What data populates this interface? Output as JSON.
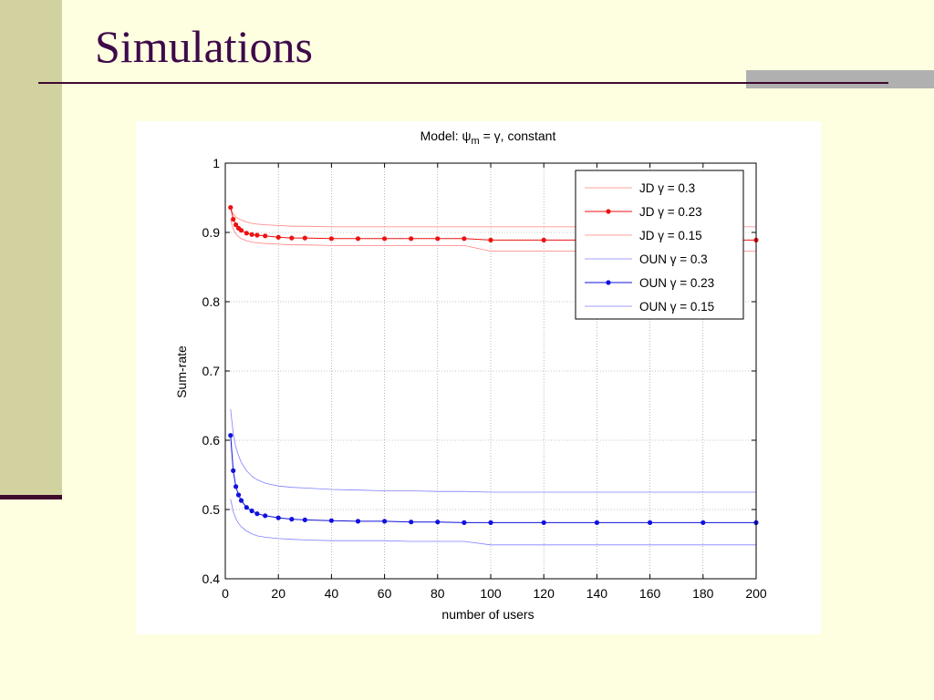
{
  "slide": {
    "title": "Simulations"
  },
  "chart_data": {
    "type": "line",
    "title": "Model: ψm = γ, constant",
    "title_parts": {
      "prefix": "Model: ",
      "psi": "ψ",
      "subscript": "m",
      "rest": " = γ, constant"
    },
    "xlabel": "number of users",
    "ylabel": "Sum-rate",
    "xlim": [
      0,
      200
    ],
    "ylim": [
      0.4,
      1
    ],
    "xticks": [
      0,
      20,
      40,
      60,
      80,
      100,
      120,
      140,
      160,
      180,
      200
    ],
    "xtick_labels": [
      "0",
      "20",
      "40",
      "60",
      "80",
      "100",
      "120",
      "140",
      "160",
      "180",
      "200"
    ],
    "yticks": [
      0.4,
      0.5,
      0.6,
      0.7,
      0.8,
      0.9,
      1
    ],
    "ytick_labels": [
      "0.4",
      "0.5",
      "0.6",
      "0.7",
      "0.8",
      "0.9",
      "1"
    ],
    "grid": true,
    "legend_position": "top-right",
    "x": [
      2,
      3,
      4,
      5,
      6,
      8,
      10,
      12,
      15,
      20,
      25,
      30,
      40,
      50,
      60,
      70,
      80,
      90,
      100,
      120,
      140,
      160,
      180,
      200
    ],
    "series": [
      {
        "name": "JD γ = 0.3",
        "color": "#ff8080",
        "style": "thin",
        "values": [
          0.935,
          0.927,
          0.922,
          0.92,
          0.918,
          0.915,
          0.913,
          0.912,
          0.911,
          0.91,
          0.909,
          0.909,
          0.908,
          0.908,
          0.908,
          0.908,
          0.908,
          0.908,
          0.908,
          0.908,
          0.908,
          0.908,
          0.908,
          0.908
        ]
      },
      {
        "name": "JD γ = 0.23",
        "color": "#ee1111",
        "style": "dots",
        "values": [
          0.936,
          0.919,
          0.911,
          0.906,
          0.903,
          0.899,
          0.897,
          0.896,
          0.895,
          0.893,
          0.892,
          0.892,
          0.891,
          0.891,
          0.891,
          0.891,
          0.891,
          0.891,
          0.889,
          0.889,
          0.889,
          0.889,
          0.889,
          0.889
        ]
      },
      {
        "name": "JD γ = 0.15",
        "color": "#ff8080",
        "style": "thin",
        "values": [
          0.918,
          0.905,
          0.898,
          0.894,
          0.891,
          0.888,
          0.886,
          0.885,
          0.884,
          0.883,
          0.882,
          0.882,
          0.881,
          0.881,
          0.881,
          0.881,
          0.881,
          0.881,
          0.873,
          0.873,
          0.873,
          0.873,
          0.873,
          0.873
        ]
      },
      {
        "name": "OUN γ = 0.3",
        "color": "#8080ff",
        "style": "thin",
        "values": [
          0.645,
          0.61,
          0.59,
          0.578,
          0.568,
          0.556,
          0.548,
          0.543,
          0.538,
          0.534,
          0.532,
          0.531,
          0.529,
          0.528,
          0.527,
          0.527,
          0.526,
          0.526,
          0.525,
          0.525,
          0.525,
          0.525,
          0.525,
          0.525
        ]
      },
      {
        "name": "OUN γ = 0.23",
        "color": "#1111dd",
        "style": "dots",
        "values": [
          0.607,
          0.556,
          0.533,
          0.521,
          0.513,
          0.503,
          0.498,
          0.494,
          0.491,
          0.488,
          0.486,
          0.485,
          0.484,
          0.483,
          0.483,
          0.482,
          0.482,
          0.481,
          0.481,
          0.481,
          0.481,
          0.481,
          0.481,
          0.481
        ]
      },
      {
        "name": "OUN γ = 0.15",
        "color": "#8080ff",
        "style": "thin",
        "values": [
          0.515,
          0.497,
          0.487,
          0.48,
          0.475,
          0.469,
          0.465,
          0.462,
          0.46,
          0.458,
          0.457,
          0.456,
          0.455,
          0.455,
          0.455,
          0.454,
          0.454,
          0.454,
          0.449,
          0.449,
          0.449,
          0.449,
          0.449,
          0.449
        ]
      }
    ]
  }
}
